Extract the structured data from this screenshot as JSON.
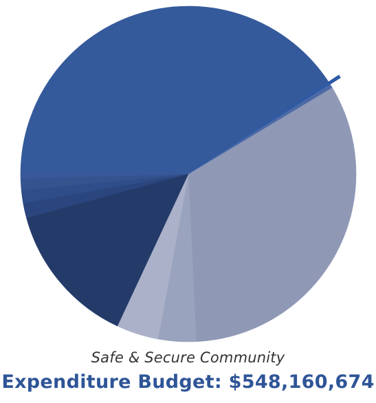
{
  "subtitle": "Safe & Secure Community",
  "title": "Expenditure Budget: $548,160,674",
  "colors": {
    "title": "#2f5597",
    "subtitle": "#333333"
  },
  "chart_data": {
    "type": "pie",
    "title": "Expenditure Budget: $548,160,674",
    "subtitle": "Safe & Secure Community",
    "total": 548160674,
    "legend": "none",
    "labels": "none",
    "start_angle_deg": -31,
    "slices": [
      {
        "share": 0.3287,
        "color": "#8f99b6"
      },
      {
        "share": 0.0364,
        "color": "#9aa3bd"
      },
      {
        "share": 0.0406,
        "color": "#aab1c8"
      },
      {
        "share": 0.1384,
        "color": "#243b69"
      },
      {
        "share": 0.0143,
        "color": "#2b467e"
      },
      {
        "share": 0.0123,
        "color": "#2f4d88"
      },
      {
        "share": 0.0113,
        "color": "#34538f"
      },
      {
        "share": 0.0068,
        "color": "#38589a"
      },
      {
        "share": 0.4046,
        "color": "#355a9b"
      },
      {
        "share": 0.0031,
        "color": "#2e5aa5",
        "exploded": true
      },
      {
        "share": 0.0035,
        "color": "#4d6aa6"
      }
    ]
  }
}
